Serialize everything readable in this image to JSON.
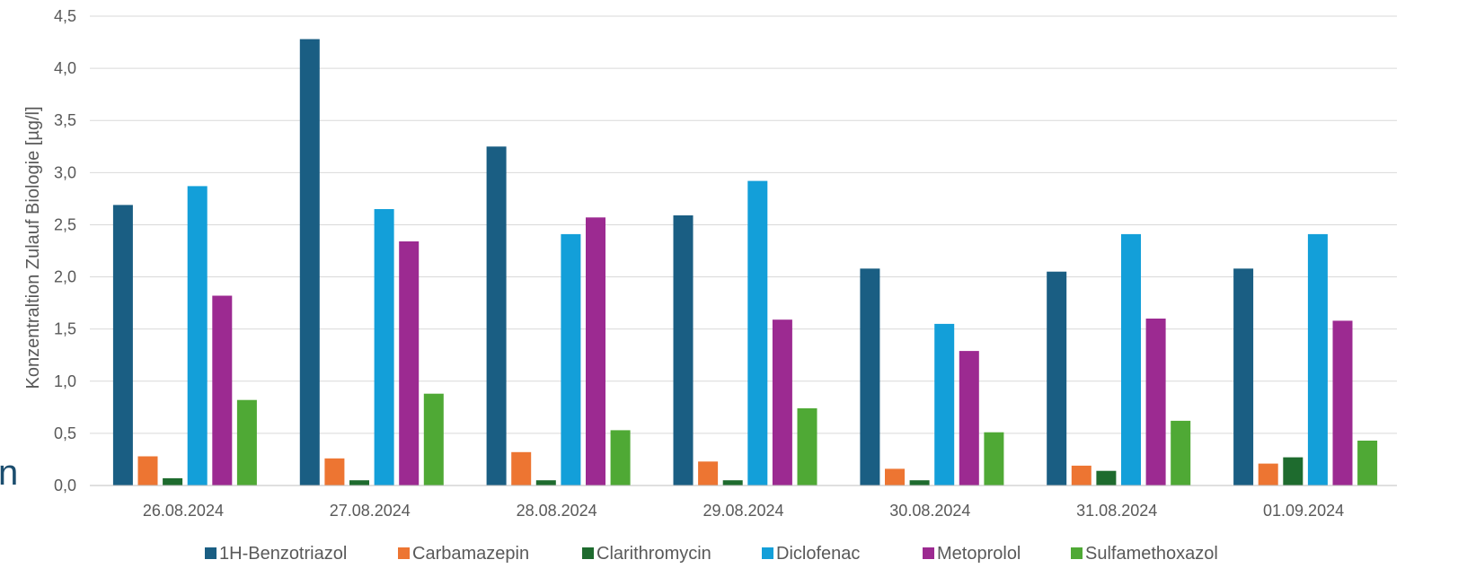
{
  "edge_glyph": "n",
  "chart_data": {
    "type": "bar",
    "title": "",
    "xlabel": "",
    "ylabel": "Konzentraltion Zulauf Biologie [µg/l]",
    "ylim": [
      0,
      4.5
    ],
    "yticks": [
      "0,0",
      "0,5",
      "1,0",
      "1,5",
      "2,0",
      "2,5",
      "3,0",
      "3,5",
      "4,0",
      "4,5"
    ],
    "grid": true,
    "legend_position": "bottom",
    "categories": [
      "26.08.2024",
      "27.08.2024",
      "28.08.2024",
      "29.08.2024",
      "30.08.2024",
      "31.08.2024",
      "01.09.2024"
    ],
    "series": [
      {
        "name": "1H-Benzotriazol",
        "color": "#1a5e83",
        "values": [
          2.69,
          4.28,
          3.25,
          2.59,
          2.08,
          2.05,
          2.08
        ]
      },
      {
        "name": "Carbamazepin",
        "color": "#ed7532",
        "values": [
          0.28,
          0.26,
          0.32,
          0.23,
          0.16,
          0.19,
          0.21
        ]
      },
      {
        "name": "Clarithromycin",
        "color": "#1e6b2e",
        "values": [
          0.07,
          0.05,
          0.05,
          0.05,
          0.05,
          0.14,
          0.27
        ]
      },
      {
        "name": "Diclofenac",
        "color": "#139fd9",
        "values": [
          2.87,
          2.65,
          2.41,
          2.92,
          1.55,
          2.41,
          2.41
        ]
      },
      {
        "name": "Metoprolol",
        "color": "#9c2a91",
        "values": [
          1.82,
          2.34,
          2.57,
          1.59,
          1.29,
          1.6,
          1.58
        ]
      },
      {
        "name": "Sulfamethoxazol",
        "color": "#4fa935",
        "values": [
          0.82,
          0.88,
          0.53,
          0.74,
          0.51,
          0.62,
          0.43
        ]
      }
    ]
  }
}
